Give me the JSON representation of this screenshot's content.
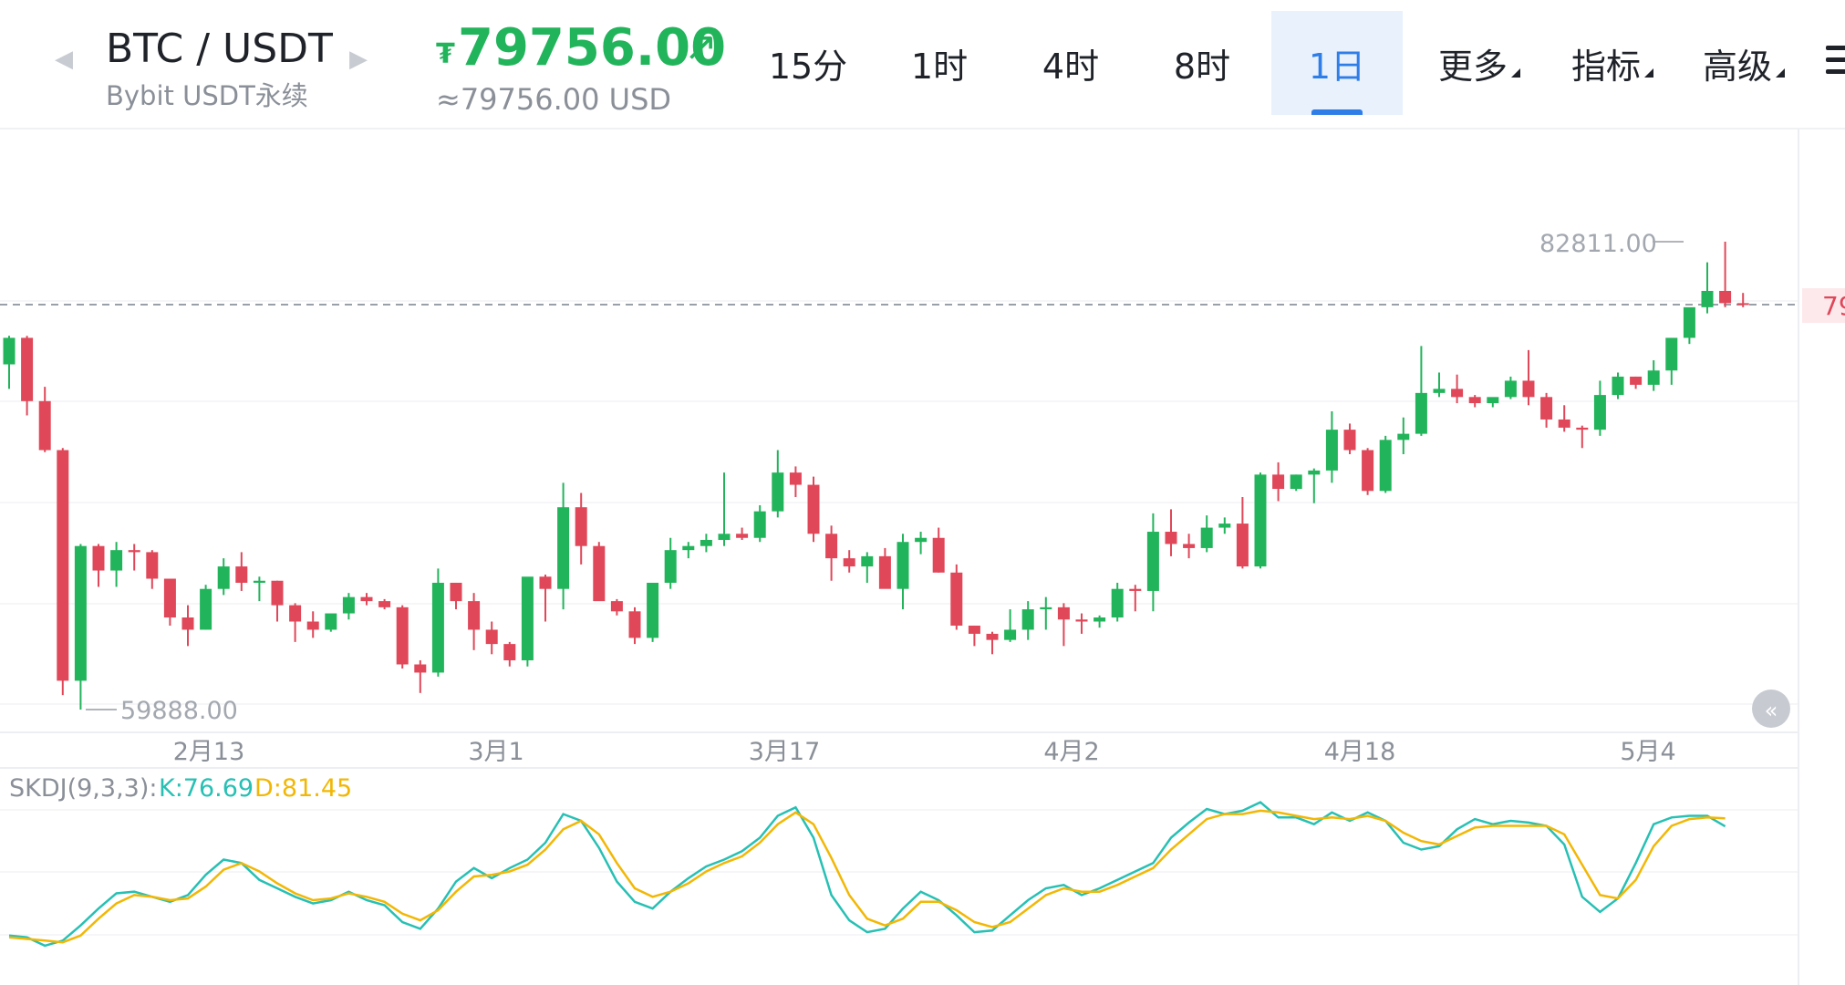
{
  "header": {
    "pair": "BTC / USDT",
    "exchange": "Bybit USDT永续",
    "price": "79756.00",
    "price_icon": "₮",
    "price_usd": "≈79756.00 USD",
    "up_color": "#22b45b",
    "down_color": "#e04759",
    "accent_color": "#2f7ee8"
  },
  "timeframes": [
    {
      "label": "15分",
      "active": false,
      "dropdown": false
    },
    {
      "label": "1时",
      "active": false,
      "dropdown": false
    },
    {
      "label": "4时",
      "active": false,
      "dropdown": false
    },
    {
      "label": "8时",
      "active": false,
      "dropdown": false
    },
    {
      "label": "1日",
      "active": true,
      "dropdown": false
    },
    {
      "label": "更多",
      "active": false,
      "dropdown": true
    },
    {
      "label": "指标",
      "active": false,
      "dropdown": true
    },
    {
      "label": "高级",
      "active": false,
      "dropdown": true
    }
  ],
  "chart": {
    "high_label": "82811.00",
    "low_label": "59888.00",
    "current_price_tag": "79",
    "date_labels": [
      "2月13",
      "3月1",
      "3月17",
      "4月2",
      "4月18",
      "5月4"
    ],
    "indicator": {
      "name": "SKDJ(9,3,3):",
      "k_label": "K:76.69",
      "d_label": "D:81.45",
      "k_color": "#27c0b4",
      "d_color": "#f2b705"
    }
  },
  "chart_data": [
    {
      "type": "candlestick",
      "title": "BTC / USDT 1日",
      "x_ticks": [
        "2月13",
        "3月1",
        "3月17",
        "4月2",
        "4月18",
        "5月4"
      ],
      "y_range": [
        59888,
        82811
      ],
      "high": 82811.0,
      "low": 59888.0,
      "last": 79756.0,
      "candles_ohlc": [
        [
          76800,
          78200,
          75600,
          78100
        ],
        [
          78100,
          78200,
          74300,
          75000
        ],
        [
          75000,
          75700,
          72500,
          72600
        ],
        [
          72600,
          72700,
          60600,
          61300
        ],
        [
          61300,
          68000,
          59888,
          67900
        ],
        [
          67900,
          68000,
          65900,
          66700
        ],
        [
          66700,
          68100,
          65900,
          67700
        ],
        [
          67700,
          68000,
          66700,
          67600
        ],
        [
          67600,
          67700,
          65800,
          66300
        ],
        [
          66300,
          66300,
          64000,
          64400
        ],
        [
          64400,
          65000,
          63000,
          63800
        ],
        [
          63800,
          66000,
          63800,
          65800
        ],
        [
          65800,
          67300,
          65500,
          66900
        ],
        [
          66900,
          67600,
          65700,
          66100
        ],
        [
          66100,
          66400,
          65200,
          66200
        ],
        [
          66200,
          66200,
          64200,
          65000
        ],
        [
          65000,
          65100,
          63200,
          64200
        ],
        [
          64200,
          64700,
          63400,
          63800
        ],
        [
          63800,
          64500,
          63700,
          64600
        ],
        [
          64600,
          65600,
          64300,
          65400
        ],
        [
          65400,
          65600,
          65000,
          65200
        ],
        [
          65200,
          65300,
          64800,
          64900
        ],
        [
          64900,
          65000,
          61900,
          62100
        ],
        [
          62100,
          62300,
          60700,
          61700
        ],
        [
          61700,
          66800,
          61500,
          66100
        ],
        [
          66100,
          66100,
          64800,
          65200
        ],
        [
          65200,
          65600,
          62800,
          63800
        ],
        [
          63800,
          64200,
          62600,
          63100
        ],
        [
          63100,
          63200,
          62000,
          62300
        ],
        [
          62300,
          66300,
          62000,
          66400
        ],
        [
          66400,
          66500,
          64200,
          65800
        ],
        [
          65800,
          71000,
          64800,
          69800
        ],
        [
          69800,
          70500,
          67000,
          67900
        ],
        [
          67900,
          68100,
          65300,
          65200
        ],
        [
          65200,
          65300,
          64500,
          64700
        ],
        [
          64700,
          64900,
          63100,
          63400
        ],
        [
          63400,
          66000,
          63200,
          66100
        ],
        [
          66100,
          68300,
          65800,
          67700
        ],
        [
          67700,
          68100,
          67300,
          67900
        ],
        [
          67900,
          68500,
          67600,
          68200
        ],
        [
          68200,
          71500,
          67900,
          68500
        ],
        [
          68500,
          68800,
          68200,
          68300
        ],
        [
          68300,
          69900,
          68100,
          69600
        ],
        [
          69600,
          72600,
          69300,
          71500
        ],
        [
          71500,
          71800,
          70300,
          70900
        ],
        [
          70900,
          71300,
          68100,
          68500
        ],
        [
          68500,
          68900,
          66200,
          67300
        ],
        [
          67300,
          67700,
          66600,
          66900
        ],
        [
          66900,
          67600,
          66100,
          67400
        ],
        [
          67400,
          67800,
          66100,
          65800
        ],
        [
          65800,
          68500,
          64800,
          68100
        ],
        [
          68100,
          68600,
          67500,
          68300
        ],
        [
          68300,
          68800,
          66600,
          66600
        ],
        [
          66600,
          67000,
          63800,
          64000
        ],
        [
          64000,
          64000,
          63000,
          63600
        ],
        [
          63600,
          63700,
          62600,
          63300
        ],
        [
          63300,
          64800,
          63200,
          63800
        ],
        [
          63800,
          65200,
          63300,
          64800
        ],
        [
          64800,
          65400,
          63800,
          64900
        ],
        [
          64900,
          65100,
          63000,
          64300
        ],
        [
          64300,
          64600,
          63600,
          64200
        ],
        [
          64200,
          64500,
          63900,
          64400
        ],
        [
          64400,
          66100,
          64200,
          65800
        ],
        [
          65800,
          66000,
          64700,
          65700
        ],
        [
          65700,
          69500,
          64700,
          68600
        ],
        [
          68600,
          69700,
          67400,
          68000
        ],
        [
          68000,
          68500,
          67300,
          67800
        ],
        [
          67800,
          69400,
          67600,
          68800
        ],
        [
          68800,
          69300,
          68500,
          69000
        ],
        [
          69000,
          70300,
          66800,
          66900
        ],
        [
          66900,
          71500,
          66800,
          71400
        ],
        [
          71400,
          72000,
          70100,
          70700
        ],
        [
          70700,
          71400,
          70600,
          71400
        ],
        [
          71400,
          71700,
          70000,
          71600
        ],
        [
          71600,
          74500,
          71000,
          73600
        ],
        [
          73600,
          73900,
          72400,
          72600
        ],
        [
          72600,
          72700,
          70400,
          70600
        ],
        [
          70600,
          73300,
          70500,
          73100
        ],
        [
          73100,
          74200,
          72400,
          73400
        ],
        [
          73400,
          77700,
          73300,
          75400
        ],
        [
          75400,
          76400,
          75200,
          75600
        ],
        [
          75600,
          76300,
          74900,
          75200
        ],
        [
          75200,
          75300,
          74700,
          74900
        ],
        [
          74900,
          75100,
          74700,
          75200
        ],
        [
          75200,
          76200,
          75100,
          76000
        ],
        [
          76000,
          77500,
          74800,
          75200
        ],
        [
          75200,
          75400,
          73700,
          74100
        ],
        [
          74100,
          74800,
          73500,
          73700
        ],
        [
          73700,
          73800,
          72700,
          73600
        ],
        [
          73600,
          76000,
          73300,
          75300
        ],
        [
          75300,
          76400,
          75100,
          76200
        ],
        [
          76200,
          76200,
          75600,
          75800
        ],
        [
          75800,
          77000,
          75500,
          76500
        ],
        [
          76500,
          77500,
          75800,
          78100
        ],
        [
          78100,
          79500,
          77800,
          79600
        ],
        [
          79600,
          81800,
          79300,
          80400
        ],
        [
          80400,
          82811,
          79600,
          79800
        ],
        [
          79800,
          80300,
          79600,
          79756
        ]
      ]
    },
    {
      "type": "line",
      "title": "SKDJ(9,3,3)",
      "y_range": [
        0,
        100
      ],
      "series": [
        {
          "name": "K",
          "color": "#27c0b4",
          "values": [
            12,
            11,
            6,
            9,
            18,
            28,
            37,
            38,
            35,
            32,
            36,
            48,
            57,
            55,
            45,
            40,
            35,
            31,
            33,
            38,
            33,
            30,
            20,
            16,
            28,
            44,
            52,
            46,
            52,
            57,
            67,
            84,
            80,
            64,
            44,
            32,
            28,
            38,
            46,
            53,
            57,
            62,
            70,
            83,
            88,
            70,
            36,
            21,
            14,
            16,
            28,
            38,
            33,
            24,
            14,
            15,
            24,
            33,
            40,
            42,
            36,
            40,
            45,
            50,
            55,
            70,
            79,
            87,
            84,
            86,
            91,
            82,
            82,
            78,
            85,
            80,
            85,
            80,
            67,
            63,
            65,
            75,
            81,
            78,
            80,
            79,
            77,
            66,
            35,
            26,
            34,
            55,
            78,
            82,
            83,
            83,
            76.69
          ]
        },
        {
          "name": "D",
          "color": "#f2b705",
          "values": [
            11,
            10,
            9,
            8,
            12,
            22,
            31,
            36,
            35,
            33,
            34,
            41,
            51,
            55,
            50,
            43,
            37,
            33,
            34,
            37,
            35,
            32,
            25,
            21,
            27,
            38,
            47,
            48,
            50,
            54,
            63,
            75,
            80,
            72,
            55,
            40,
            35,
            38,
            43,
            50,
            55,
            59,
            67,
            78,
            85,
            78,
            58,
            36,
            22,
            18,
            22,
            32,
            32,
            27,
            20,
            17,
            20,
            28,
            36,
            40,
            38,
            38,
            42,
            47,
            52,
            63,
            72,
            81,
            84,
            84,
            86,
            85,
            83,
            81,
            82,
            81,
            83,
            80,
            73,
            68,
            66,
            71,
            76,
            77,
            77,
            77,
            77,
            72,
            54,
            36,
            34,
            45,
            65,
            77,
            81,
            82,
            81.45
          ]
        }
      ]
    }
  ]
}
